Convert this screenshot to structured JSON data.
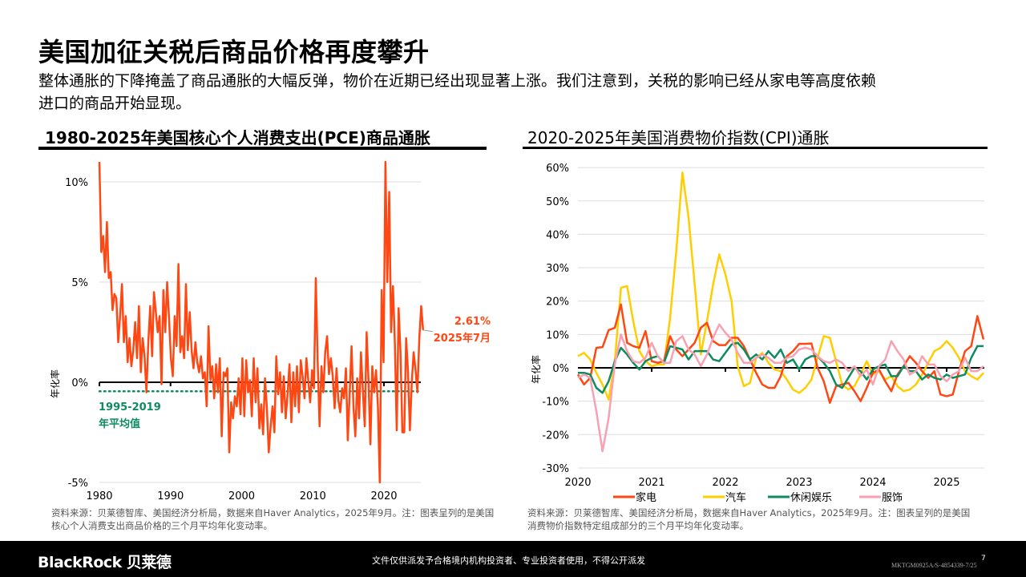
{
  "header": {
    "title": "美国加征关税后商品价格再度攀升",
    "subtitle_line1": "整体通胀的下降掩盖了商品通胀的大幅反弹，物价在近期已经出现显著上涨。我们注意到，关税的影响已经从家电等高度依赖",
    "subtitle_line2": "进口的商品开始显现。"
  },
  "chart_data": [
    {
      "type": "line",
      "title": "1980-2025年美国核心个人消费支出(PCE)商品通胀",
      "ylabel": "年化率",
      "xlabel": "",
      "xlim": [
        1980,
        2025.6
      ],
      "ylim": [
        -5,
        11
      ],
      "x_ticks": [
        "1980",
        "1990",
        "2000",
        "2010",
        "2020"
      ],
      "y_ticks": [
        "10%",
        "5%",
        "0%",
        "-5%"
      ],
      "grid": true,
      "frequency": "quarterly",
      "start": "1980",
      "series": [
        {
          "color": "#ff4713",
          "values": [
            11,
            6.5,
            7.3,
            5.5,
            8,
            5.2,
            5.5,
            3.6,
            4.4,
            4.2,
            2,
            3.3,
            4.9,
            2,
            3.3,
            1,
            2.2,
            0.8,
            1.6,
            3,
            1.2,
            3.8,
            0.5,
            2.2,
            1.3,
            -0.5,
            2,
            3.8,
            1.3,
            4.5,
            3.5,
            2.5,
            3.3,
            -0.1,
            4.6,
            2.5,
            5,
            3.2,
            1.2,
            0.3,
            3.3,
            1.8,
            5.9,
            1.5,
            2.3,
            1.2,
            4.9,
            1.6,
            3.5,
            1.6,
            0.7,
            2,
            1,
            0.5,
            1.3,
            0.2,
            0.5,
            -1.2,
            2.8,
            0.1,
            0.8,
            -0.8,
            0.9,
            -0.5,
            1.2,
            -2.7,
            0.5,
            0.3,
            0.7,
            -3.5,
            -1,
            -1.8,
            -0.7,
            -1.2,
            0.2,
            -1.6,
            1.2,
            -1.7,
            1.1,
            -0.5,
            0.1,
            -1.7,
            1.2,
            -1,
            0.7,
            -2.3,
            -1.1,
            -2.6,
            0.2,
            -1.3,
            -3.5,
            -2.2,
            -1.2,
            -2.5,
            1.3,
            -0.6,
            0.5,
            -1.5,
            0.3,
            -1.8,
            -0.6,
            0.9,
            -2,
            0.5,
            -1.2,
            0.8,
            -1.5,
            1.1,
            0.3,
            -0.8,
            1.2,
            0.1,
            -1,
            0.6,
            -0.3,
            5.2,
            1,
            -2.2,
            0.8,
            -0.5,
            1.5,
            2.3,
            0.4,
            1.2,
            0.3,
            -1.3,
            0.7,
            -0.9,
            -1.5,
            -0.3,
            -0.8,
            0.7,
            -2.9,
            -0.5,
            1.8,
            -1.2,
            -2.7,
            0.2,
            -1.8,
            1.5,
            -0.4,
            -2.2,
            2.5,
            0.1,
            -3.1,
            0.8,
            -0.5,
            0.6,
            -1.2,
            -5,
            4.6,
            1,
            11,
            5,
            9.5,
            2.5,
            4.8,
            2,
            -2.4,
            3.7,
            1.5,
            -2.5,
            -2.5,
            2.2,
            0.5,
            -2.4,
            0,
            1.5,
            0.6,
            -0.5,
            2.2,
            3.8,
            2.61
          ]
        }
      ],
      "annotations": {
        "last_value": "2.61%",
        "last_date": "2025年7月",
        "average_label_line1": "1995-2019",
        "average_label_line2": "年平均值",
        "average_value": -0.45,
        "average_color": "#0e8c5f"
      }
    },
    {
      "type": "line",
      "title": "2020-2025年美国消费物价指数(CPI)通胀",
      "ylabel": "年化率",
      "xlabel": "",
      "xlim": [
        "2020-01",
        "2025-07"
      ],
      "ylim": [
        -30,
        60
      ],
      "x_ticks": [
        "2020",
        "2021",
        "2022",
        "2023",
        "2024",
        "2025"
      ],
      "y_ticks": [
        "60%",
        "50%",
        "40%",
        "30%",
        "20%",
        "10%",
        "0%",
        "-10%",
        "-20%",
        "-30%"
      ],
      "grid": true,
      "frequency": "monthly",
      "start": "2020-01",
      "legend_position": "bottom",
      "series": [
        {
          "name": "家电",
          "color": "#ff4713",
          "values": [
            -2,
            -5,
            -3,
            6,
            6.2,
            11.3,
            12,
            19,
            7.5,
            6.5,
            6,
            11,
            2,
            1.5,
            2,
            9.5,
            5.5,
            3.5,
            5.5,
            7.5,
            12,
            13.5,
            8,
            6.8,
            6.8,
            9,
            9,
            6.5,
            2.5,
            -1.5,
            -5,
            -6,
            -6,
            -2.5,
            3.5,
            5,
            7.2,
            7.2,
            7.3,
            0,
            -4,
            -10.5,
            -5.5,
            -5,
            -4.5,
            -7,
            -10,
            -6,
            -1.5,
            -0.5,
            -4,
            -7,
            -2,
            0.5,
            3.5,
            1.5,
            -1,
            -3,
            -1,
            -8,
            -8.5,
            -8,
            -1,
            5,
            6.5,
            15.5,
            8.5
          ]
        },
        {
          "name": "汽车",
          "color": "#ffce00",
          "values": [
            3.5,
            4.5,
            2.5,
            -1.5,
            -5,
            -9.5,
            2,
            24,
            24.5,
            14,
            5,
            2,
            0.5,
            1,
            1,
            15,
            35,
            58.5,
            45,
            25,
            4,
            14,
            25,
            34,
            28,
            20,
            0.5,
            -5.5,
            -4.5,
            3,
            4.5,
            1.5,
            -0.5,
            -1,
            -3.5,
            -6.5,
            -7.5,
            -6,
            -3.5,
            3,
            9.5,
            9,
            2,
            -5,
            -6.5,
            -5.5,
            -2,
            2,
            -2,
            -1,
            -3.5,
            -2.5,
            -5.5,
            -7,
            -6.5,
            -5,
            -2,
            1.5,
            5,
            6,
            8,
            6,
            3,
            -1,
            -2.5,
            -3.5,
            -1.5
          ]
        },
        {
          "name": "休闲娱乐",
          "color": "#0e8c5f",
          "values": [
            -1.5,
            -1.5,
            -2,
            -6,
            -7.5,
            -4,
            2,
            6,
            4,
            1.5,
            -0.5,
            2,
            3,
            3.5,
            1.5,
            6.5,
            6,
            5.5,
            2.5,
            5,
            5,
            5,
            2.5,
            2,
            4.5,
            7,
            7.5,
            5.5,
            2.5,
            4,
            2.5,
            5,
            3,
            5.5,
            1.5,
            2.5,
            -0.5,
            2.5,
            3.5,
            3.5,
            1.5,
            -1,
            -5,
            -6,
            -3,
            0,
            -1,
            -3.5,
            -0.5,
            0.5,
            1,
            -2.5,
            -2.5,
            0.5,
            -1,
            -1,
            -3.5,
            -2,
            -3,
            -3.5,
            -2,
            -3,
            -2.5,
            -2,
            3,
            6.5,
            6.5
          ]
        },
        {
          "name": "服饰",
          "color": "#f7a1b3",
          "values": [
            -3,
            -2,
            -3,
            -13,
            -25,
            -15,
            1,
            10,
            5,
            2,
            1.5,
            3,
            7.5,
            3.5,
            1.5,
            1.5,
            8,
            9.5,
            5.5,
            4,
            0.5,
            4,
            9,
            13,
            10.5,
            8.5,
            4.5,
            1.5,
            1.5,
            3,
            4,
            3,
            1.5,
            1.5,
            3,
            3.5,
            5.5,
            6,
            5.5,
            3.5,
            2,
            1.5,
            2.5,
            1.5,
            -1,
            0.5,
            -2.5,
            -0.5,
            -5,
            0.5,
            2.5,
            8,
            5,
            2.5,
            -2,
            -1,
            3.5,
            1,
            1,
            -2.5,
            -4,
            -2,
            -1,
            3,
            -1,
            -1,
            0.5
          ]
        }
      ]
    }
  ],
  "sources": {
    "left": "资料来源：贝莱德智库、美国经济分析局，数据来自Haver Analytics，2025年9月。注：图表呈列的是美国核心个人消费支出商品价格的三个月平均年化变动率。",
    "right": "资料来源：贝莱德智库、美国经济分析局，数据来自Haver Analytics，2025年9月。注：图表呈列的是美国消费物价指数特定组成部分的三个月平均年化变动率。"
  },
  "footer": {
    "logo": "BlackRock 贝莱德",
    "disclaimer": "文件仅供派发予合格境内机构投资者、专业投资者使用，不得公开派发",
    "page_number": "7",
    "code": "MKTGM0925A/S-4854339-7/25"
  }
}
